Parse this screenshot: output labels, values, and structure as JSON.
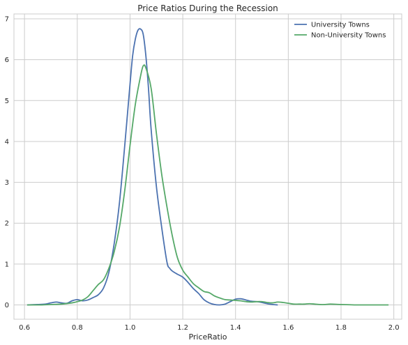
{
  "chart_data": {
    "type": "line",
    "title": "Price Ratios During the Recession",
    "xlabel": "PriceRatio",
    "ylabel": "",
    "xlim": [
      0.56,
      2.03
    ],
    "ylim": [
      -0.35,
      7.12
    ],
    "xticks": [
      0.6,
      0.8,
      1.0,
      1.2,
      1.4,
      1.6,
      1.8,
      2.0
    ],
    "xtick_labels": [
      "0.6",
      "0.8",
      "1.0",
      "1.2",
      "1.4",
      "1.6",
      "1.8",
      "2.0"
    ],
    "yticks": [
      0,
      1,
      2,
      3,
      4,
      5,
      6,
      7
    ],
    "ytick_labels": [
      "0",
      "1",
      "2",
      "3",
      "4",
      "5",
      "6",
      "7"
    ],
    "grid": true,
    "legend_position": "top-right",
    "series": [
      {
        "name": "University Towns",
        "color": "#4c72b0",
        "x": [
          0.61,
          0.65,
          0.68,
          0.7,
          0.72,
          0.74,
          0.76,
          0.78,
          0.8,
          0.82,
          0.84,
          0.86,
          0.88,
          0.9,
          0.92,
          0.94,
          0.96,
          0.98,
          1.0,
          1.01,
          1.02,
          1.03,
          1.04,
          1.05,
          1.06,
          1.07,
          1.08,
          1.1,
          1.12,
          1.14,
          1.15,
          1.16,
          1.18,
          1.2,
          1.22,
          1.24,
          1.26,
          1.28,
          1.3,
          1.32,
          1.34,
          1.36,
          1.38,
          1.4,
          1.42,
          1.44,
          1.46,
          1.48,
          1.5,
          1.52,
          1.54,
          1.56
        ],
        "y": [
          0.0,
          0.01,
          0.02,
          0.05,
          0.07,
          0.05,
          0.04,
          0.1,
          0.13,
          0.1,
          0.12,
          0.18,
          0.25,
          0.42,
          0.8,
          1.5,
          2.5,
          3.9,
          5.4,
          6.1,
          6.5,
          6.72,
          6.75,
          6.62,
          6.1,
          5.3,
          4.3,
          2.9,
          1.9,
          1.05,
          0.9,
          0.83,
          0.75,
          0.68,
          0.55,
          0.4,
          0.28,
          0.13,
          0.05,
          0.01,
          0.0,
          0.02,
          0.08,
          0.14,
          0.15,
          0.12,
          0.09,
          0.08,
          0.06,
          0.03,
          0.01,
          0.0
        ]
      },
      {
        "name": "Non-University Towns",
        "color": "#55a868",
        "x": [
          0.61,
          0.66,
          0.7,
          0.74,
          0.78,
          0.8,
          0.82,
          0.84,
          0.86,
          0.88,
          0.9,
          0.92,
          0.94,
          0.96,
          0.98,
          1.0,
          1.02,
          1.04,
          1.05,
          1.06,
          1.08,
          1.1,
          1.12,
          1.14,
          1.16,
          1.18,
          1.2,
          1.22,
          1.24,
          1.26,
          1.28,
          1.3,
          1.32,
          1.34,
          1.36,
          1.38,
          1.4,
          1.42,
          1.44,
          1.46,
          1.48,
          1.5,
          1.52,
          1.54,
          1.56,
          1.58,
          1.6,
          1.62,
          1.64,
          1.66,
          1.68,
          1.7,
          1.72,
          1.74,
          1.76,
          1.8,
          1.85,
          1.9,
          1.95,
          1.98
        ],
        "y": [
          0.0,
          0.0,
          0.01,
          0.02,
          0.05,
          0.08,
          0.12,
          0.2,
          0.35,
          0.5,
          0.62,
          0.9,
          1.3,
          1.9,
          2.8,
          3.9,
          4.9,
          5.6,
          5.85,
          5.8,
          5.3,
          4.2,
          3.2,
          2.4,
          1.7,
          1.15,
          0.85,
          0.68,
          0.52,
          0.42,
          0.33,
          0.3,
          0.22,
          0.17,
          0.13,
          0.12,
          0.11,
          0.1,
          0.08,
          0.07,
          0.08,
          0.08,
          0.06,
          0.05,
          0.07,
          0.06,
          0.04,
          0.02,
          0.02,
          0.02,
          0.03,
          0.02,
          0.01,
          0.01,
          0.02,
          0.01,
          0.0,
          0.0,
          0.0,
          0.0
        ]
      }
    ]
  },
  "colors": {
    "plot_background": "#ffffff",
    "grid": "#cccccc",
    "frame": "#cccccc"
  }
}
